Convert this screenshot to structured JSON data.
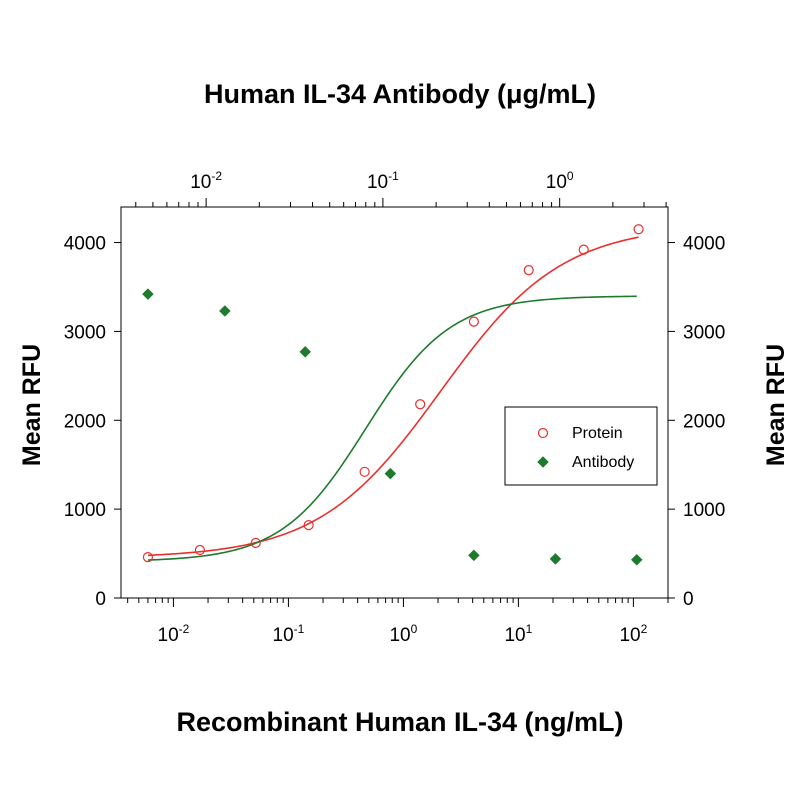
{
  "chart_data": {
    "type": "scatter",
    "top_title": "Human IL-34 Antibody (μg/mL)",
    "xlabel": "Recombinant Human IL-34 (ng/mL)",
    "ylabel_left": "Mean RFU",
    "ylabel_right": "Mean RFU",
    "ylim": [
      0,
      4400
    ],
    "y_ticks": [
      0,
      1000,
      2000,
      3000,
      4000
    ],
    "x_bottom": {
      "scale": "log",
      "range": [
        0.0035,
        200
      ],
      "major_ticks": [
        0.01,
        0.1,
        1,
        10,
        100
      ]
    },
    "x_top": {
      "scale": "log",
      "range": [
        0.0033,
        4.1
      ],
      "major_ticks": [
        0.01,
        0.1,
        1
      ]
    },
    "legend_position": "right-middle",
    "series": [
      {
        "name": "Protein",
        "axis": "bottom",
        "marker": "open-circle",
        "color": "#e8312f",
        "x": [
          0.006,
          0.017,
          0.052,
          0.15,
          0.46,
          1.4,
          4.1,
          12.3,
          37,
          111
        ],
        "y": [
          460,
          540,
          620,
          820,
          1420,
          2180,
          3110,
          3690,
          3920,
          4150
        ],
        "fit": {
          "bottom": 450,
          "top": 4200,
          "ec50": 2.1,
          "hill": 0.82
        }
      },
      {
        "name": "Antibody",
        "axis": "bottom",
        "marker": "filled-diamond",
        "color": "#1e7b2d",
        "x": [
          0.006,
          0.028,
          0.14,
          0.77,
          4.1,
          21,
          107
        ],
        "y": [
          3420,
          3230,
          2770,
          1400,
          480,
          440,
          430
        ],
        "fit": {
          "bottom": 410,
          "top": 3400,
          "ec50": 0.47,
          "hill": 1.18
        }
      }
    ]
  }
}
